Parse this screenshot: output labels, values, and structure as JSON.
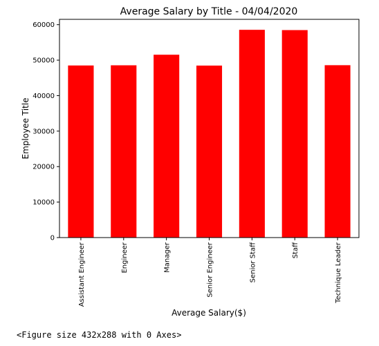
{
  "chart_data": {
    "type": "bar",
    "title": "Average Salary by Title - 04/04/2020",
    "xlabel": "Average Salary($)",
    "ylabel": "Employee Title",
    "categories": [
      "Assistant Engineer",
      "Engineer",
      "Manager",
      "Senior Engineer",
      "Senior Staff",
      "Staff",
      "Technique Leader"
    ],
    "values": [
      48500,
      48550,
      51530,
      48470,
      58550,
      58470,
      48580
    ],
    "ylim": [
      0,
      61500
    ],
    "yticks": [
      0,
      10000,
      20000,
      30000,
      40000,
      50000,
      60000
    ],
    "bar_color": "#ff0000",
    "grid": false,
    "legend": "none"
  },
  "output_text": "<Figure size 432x288 with 0 Axes>"
}
